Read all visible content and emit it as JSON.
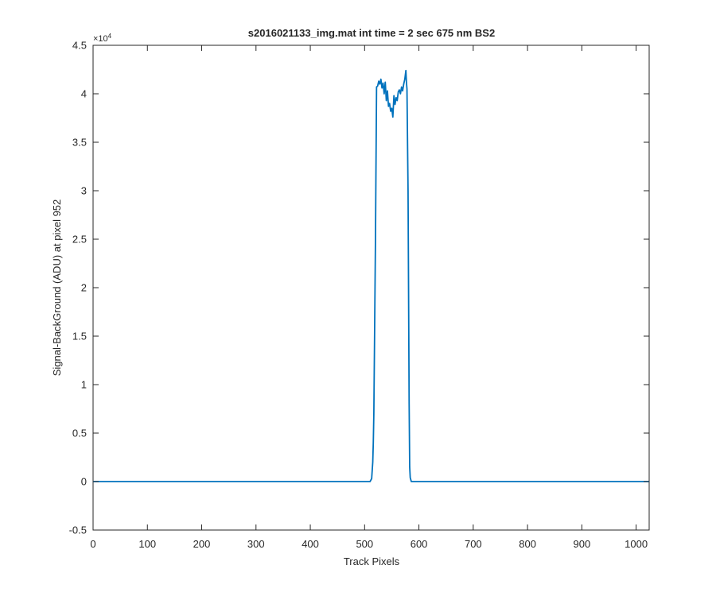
{
  "chart_data": {
    "type": "line",
    "title": "s2016021133_img.mat int time = 2 sec  675 nm BS2",
    "xlabel": "Track Pixels",
    "ylabel": "Signal-BackGround (ADU) at pixel 952",
    "xlim": [
      0,
      1024
    ],
    "ylim": [
      -0.5,
      4.5
    ],
    "y_exponent_label": "×10",
    "y_exponent_power": "4",
    "y_scale": 10000,
    "xticks": [
      "0",
      "100",
      "200",
      "300",
      "400",
      "500",
      "600",
      "700",
      "800",
      "900",
      "1000"
    ],
    "yticks": [
      "-0.5",
      "0",
      "0.5",
      "1",
      "1.5",
      "2",
      "2.5",
      "3",
      "3.5",
      "4",
      "4.5"
    ],
    "grid": false,
    "line_color": "#0072BD",
    "series": [
      {
        "x": [
          0,
          100,
          200,
          300,
          400,
          500,
          510,
          513,
          515,
          516,
          517,
          518,
          520,
          522,
          524,
          526,
          528,
          530,
          532,
          534,
          536,
          538,
          540,
          542,
          544,
          546,
          548,
          550,
          552,
          554,
          556,
          558,
          560,
          562,
          564,
          566,
          568,
          570,
          572,
          574,
          576,
          577,
          578,
          580,
          582,
          583,
          584,
          586,
          590,
          600,
          700,
          800,
          900,
          1000,
          1024
        ],
        "y": [
          0.0,
          0.0,
          0.0,
          0.0,
          0.0,
          0.0,
          0.0,
          0.03,
          0.2,
          0.4,
          0.7,
          1.3,
          2.5,
          4.07,
          4.08,
          4.13,
          4.1,
          4.15,
          4.06,
          4.11,
          4.0,
          4.12,
          3.93,
          4.03,
          3.87,
          3.9,
          3.82,
          3.85,
          3.76,
          3.98,
          3.89,
          3.96,
          3.93,
          4.02,
          4.04,
          4.0,
          4.07,
          4.03,
          4.1,
          4.15,
          4.24,
          4.12,
          4.05,
          3.0,
          0.8,
          0.15,
          0.04,
          0.0,
          0.0,
          0.0,
          0.0,
          0.0,
          0.0,
          0.0,
          0.0
        ]
      }
    ]
  }
}
